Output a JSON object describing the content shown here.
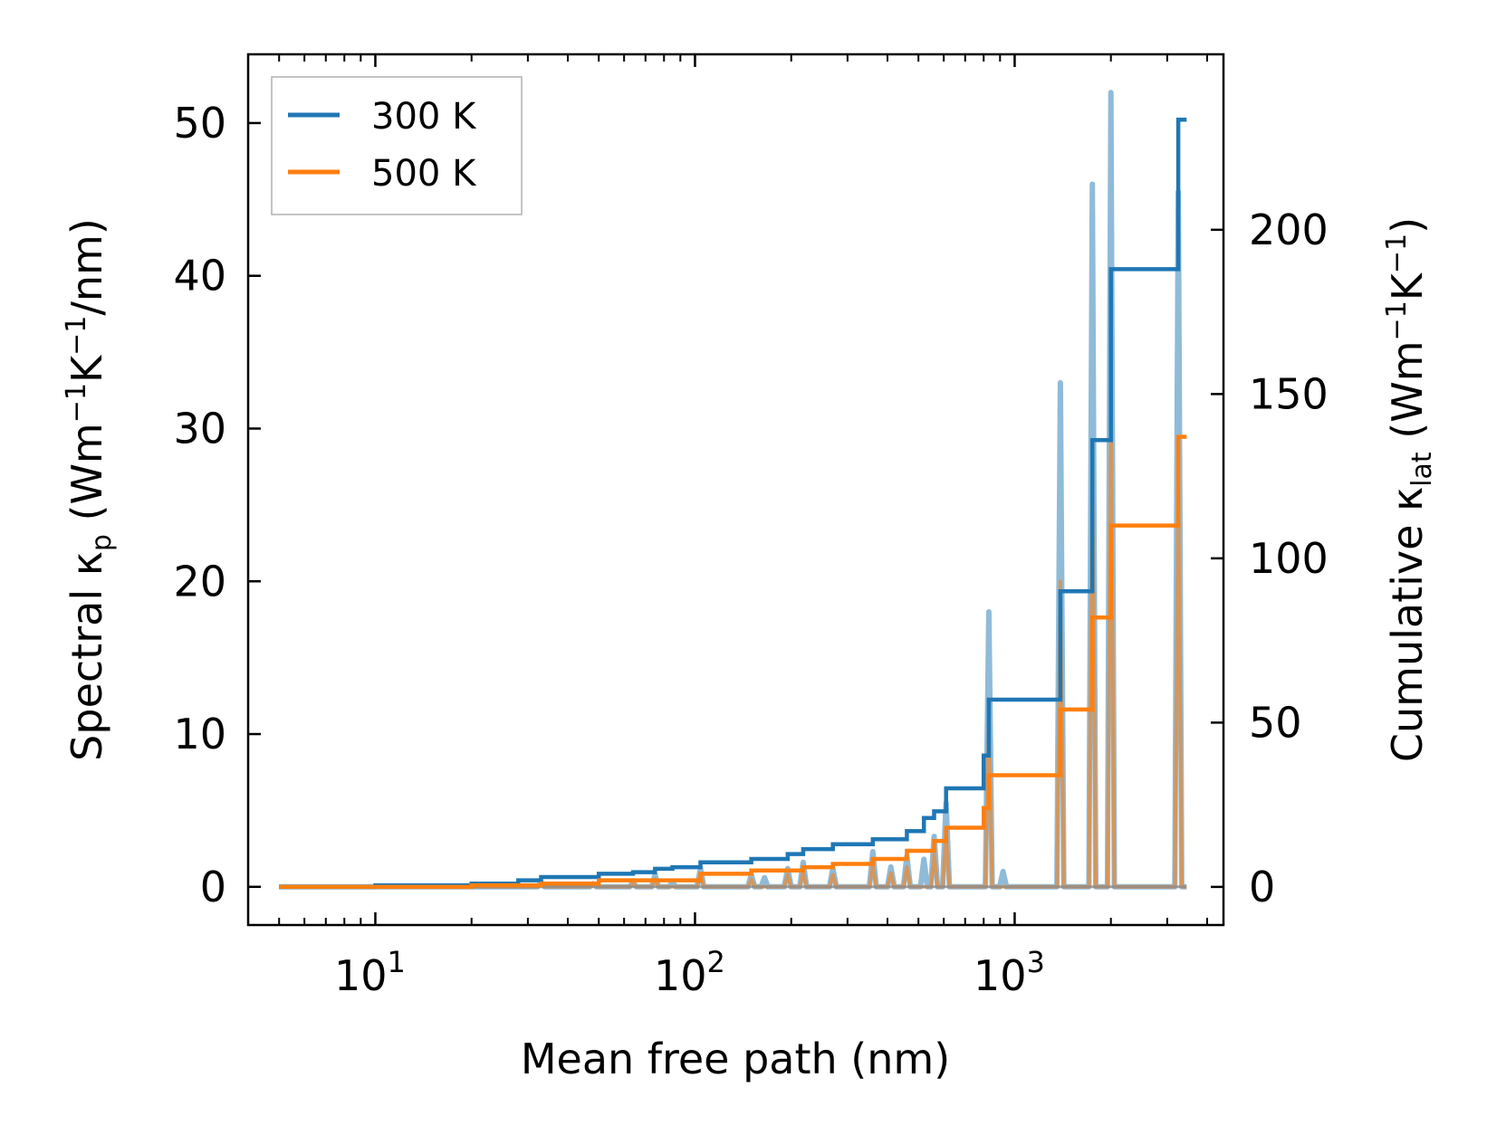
{
  "chart_data": {
    "type": "line",
    "xscale": "log",
    "xlabel": "Mean free path (nm)",
    "ylabel_left": {
      "prefix": "Spectral κ",
      "sub": "p",
      "suffix": " (Wm",
      "exp1": "−1",
      "mid": "K",
      "exp2": "−1",
      "tail": "/nm)"
    },
    "ylabel_right": {
      "prefix": "Cumulative κ",
      "sub": "lat",
      "suffix": " (Wm",
      "exp1": "−1",
      "mid": "K",
      "exp2": "−1",
      "tail": ")"
    },
    "xlim": [
      4,
      4500
    ],
    "ylim_left": [
      -2.5,
      54.5
    ],
    "ylim_right": [
      -11.6,
      253.4
    ],
    "x_ticks": [
      {
        "value": 10,
        "base": "10",
        "exp": "1"
      },
      {
        "value": 100,
        "base": "10",
        "exp": "2"
      },
      {
        "value": 1000,
        "base": "10",
        "exp": "3"
      }
    ],
    "y_left_ticks": [
      0,
      10,
      20,
      30,
      40,
      50
    ],
    "y_right_ticks": [
      0,
      50,
      100,
      150,
      200
    ],
    "legend": {
      "position": "top-left",
      "entries": [
        {
          "label": "300 K",
          "color": "#1f77b4"
        },
        {
          "label": "500 K",
          "color": "#ff7f0e"
        }
      ]
    },
    "spectral_baseline": 0,
    "spectral_series": [
      {
        "name": "300 K spectral",
        "color": "#1f77b4",
        "axis": "left",
        "peaks": [
          [
            33,
            0.3
          ],
          [
            48,
            0.2
          ],
          [
            64,
            0.3
          ],
          [
            75,
            0.8
          ],
          [
            85,
            0.3
          ],
          [
            104,
            1.2
          ],
          [
            150,
            0.8
          ],
          [
            165,
            0.6
          ],
          [
            195,
            1.2
          ],
          [
            218,
            1.6
          ],
          [
            270,
            1.2
          ],
          [
            360,
            2.3
          ],
          [
            410,
            1.3
          ],
          [
            460,
            2.0
          ],
          [
            520,
            1.8
          ],
          [
            560,
            3.3
          ],
          [
            610,
            5.5
          ],
          [
            830,
            18.0
          ],
          [
            920,
            1.0
          ],
          [
            1390,
            33.0
          ],
          [
            1750,
            46.0
          ],
          [
            2000,
            52.0
          ],
          [
            3250,
            45.5
          ]
        ]
      },
      {
        "name": "500 K spectral",
        "color": "#ff7f0e",
        "axis": "left",
        "peaks": [
          [
            33,
            0.2
          ],
          [
            48,
            0.1
          ],
          [
            64,
            0.2
          ],
          [
            75,
            0.5
          ],
          [
            104,
            0.8
          ],
          [
            150,
            0.5
          ],
          [
            195,
            0.8
          ],
          [
            218,
            1.0
          ],
          [
            270,
            0.8
          ],
          [
            360,
            1.4
          ],
          [
            410,
            0.9
          ],
          [
            460,
            1.3
          ],
          [
            560,
            2.1
          ],
          [
            610,
            3.5
          ],
          [
            830,
            11.0
          ],
          [
            1390,
            20.0
          ],
          [
            1750,
            28.0
          ],
          [
            2000,
            31.0
          ],
          [
            3250,
            27.0
          ]
        ]
      }
    ],
    "cumulative_series": [
      {
        "name": "300 K",
        "color": "#1f77b4",
        "axis": "right",
        "steps": [
          [
            5,
            0
          ],
          [
            10,
            0.5
          ],
          [
            20,
            1.0
          ],
          [
            28,
            2.0
          ],
          [
            33,
            3.0
          ],
          [
            50,
            4.0
          ],
          [
            64,
            4.5
          ],
          [
            75,
            5.5
          ],
          [
            85,
            6.0
          ],
          [
            104,
            7.5
          ],
          [
            150,
            8.5
          ],
          [
            195,
            10.0
          ],
          [
            218,
            11.5
          ],
          [
            270,
            13.0
          ],
          [
            360,
            14.5
          ],
          [
            460,
            17.0
          ],
          [
            520,
            21.0
          ],
          [
            560,
            23.0
          ],
          [
            610,
            30.0
          ],
          [
            800,
            40.0
          ],
          [
            830,
            57.0
          ],
          [
            1390,
            90.0
          ],
          [
            1750,
            136.0
          ],
          [
            2000,
            188.0
          ],
          [
            3250,
            233.5
          ],
          [
            3450,
            233.5
          ]
        ]
      },
      {
        "name": "500 K",
        "color": "#ff7f0e",
        "axis": "right",
        "steps": [
          [
            5,
            0
          ],
          [
            20,
            0.5
          ],
          [
            33,
            1.0
          ],
          [
            50,
            2.0
          ],
          [
            104,
            4.0
          ],
          [
            150,
            5.0
          ],
          [
            218,
            6.0
          ],
          [
            270,
            7.0
          ],
          [
            360,
            8.5
          ],
          [
            460,
            11.0
          ],
          [
            560,
            14.0
          ],
          [
            610,
            18.0
          ],
          [
            800,
            24.0
          ],
          [
            830,
            34.0
          ],
          [
            1390,
            54.0
          ],
          [
            1750,
            82.0
          ],
          [
            2000,
            110.0
          ],
          [
            3250,
            137.0
          ],
          [
            3450,
            137.0
          ]
        ]
      }
    ]
  }
}
